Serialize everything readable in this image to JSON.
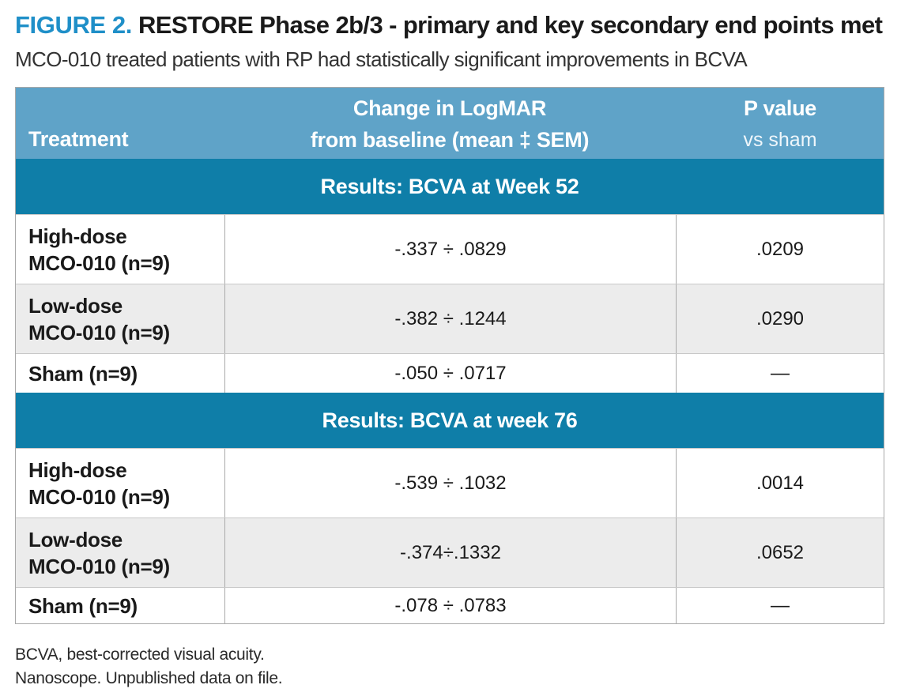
{
  "figure": {
    "label": "FIGURE 2.",
    "title": "RESTORE Phase 2b/3 - primary and key secondary end points met",
    "subtitle": "MCO-010 treated patients with RP had statistically significant improvements in BCVA"
  },
  "table": {
    "headers": {
      "treatment": "Treatment",
      "change_line1": "Change in LogMAR",
      "change_line2": "from baseline (mean ‡ SEM)",
      "pvalue": "P value",
      "pvalue_sub": "vs sham"
    },
    "sections": [
      {
        "title": "Results: BCVA at Week 52",
        "rows": [
          {
            "treatment_line1": "High-dose",
            "treatment_line2": "MCO-010 (n=9)",
            "change": "-.337 ÷ .0829",
            "pvalue": ".0209"
          },
          {
            "treatment_line1": "Low-dose",
            "treatment_line2": "MCO-010 (n=9)",
            "change": "-.382 ÷ .1244",
            "pvalue": ".0290"
          },
          {
            "treatment_line1": "Sham (n=9)",
            "treatment_line2": "",
            "change": "-.050 ÷ .0717",
            "pvalue": "—"
          }
        ]
      },
      {
        "title": "Results: BCVA at week 76",
        "rows": [
          {
            "treatment_line1": "High-dose",
            "treatment_line2": "MCO-010 (n=9)",
            "change": "-.539 ÷ .1032",
            "pvalue": ".0014"
          },
          {
            "treatment_line1": "Low-dose",
            "treatment_line2": "MCO-010 (n=9)",
            "change": "-.374÷.1332",
            "pvalue": ".0652"
          },
          {
            "treatment_line1": "Sham (n=9)",
            "treatment_line2": "",
            "change": "-.078 ÷ .0783",
            "pvalue": "—"
          }
        ]
      }
    ]
  },
  "footnotes": {
    "line1": "BCVA, best-corrected visual acuity.",
    "line2": "Nanoscope. Unpublished data on file."
  },
  "colors": {
    "header_bg": "#5fa3c8",
    "section_bg": "#0f7ea8",
    "figure_label": "#1f8fc8",
    "row_shade": "#ececec"
  }
}
